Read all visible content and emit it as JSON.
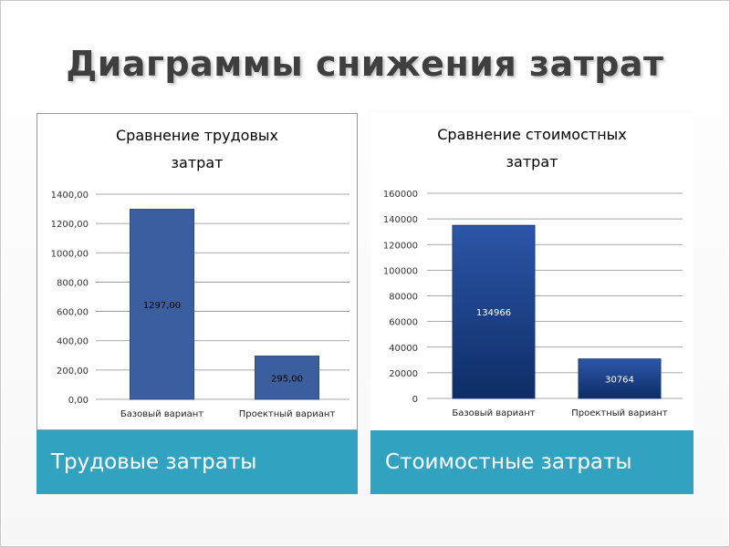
{
  "slide": {
    "title": "Диаграммы снижения затрат"
  },
  "panels": [
    {
      "caption": "Трудовые затраты",
      "title_line1": "Сравнение трудовых",
      "title_line2": "затрат"
    },
    {
      "caption": "Стоимостные затраты",
      "title_line1": "Сравнение стоимостных",
      "title_line2": "затрат"
    }
  ],
  "colors": {
    "caption_bg": "#31a3c0",
    "bar_left": "#3a5e9e",
    "bar_right_top": "#2c56a8",
    "bar_right_bottom": "#0e2d66",
    "grid": "#8c8c8c"
  },
  "chart_data": [
    {
      "type": "bar",
      "title": "Сравнение трудовых затрат",
      "categories": [
        "Базовый вариант",
        "Проектный вариант"
      ],
      "values": [
        1297.0,
        295.0
      ],
      "value_labels": [
        "1297,00",
        "295,00"
      ],
      "ylim": [
        0,
        1400
      ],
      "yticks": [
        0,
        200,
        400,
        600,
        800,
        1000,
        1200,
        1400
      ],
      "ytick_labels": [
        "0,00",
        "200,00",
        "400,00",
        "600,00",
        "800,00",
        "1000,00",
        "1200,00",
        "1400,00"
      ],
      "grid": true
    },
    {
      "type": "bar",
      "title": "Сравнение стоимостных затрат",
      "categories": [
        "Базовый вариант",
        "Проектный вариант"
      ],
      "values": [
        134966,
        30764
      ],
      "value_labels": [
        "134966",
        "30764"
      ],
      "ylim": [
        0,
        160000
      ],
      "yticks": [
        0,
        20000,
        40000,
        60000,
        80000,
        100000,
        120000,
        140000,
        160000
      ],
      "ytick_labels": [
        "0",
        "20000",
        "40000",
        "60000",
        "80000",
        "100000",
        "120000",
        "140000",
        "160000"
      ],
      "grid": true
    }
  ]
}
